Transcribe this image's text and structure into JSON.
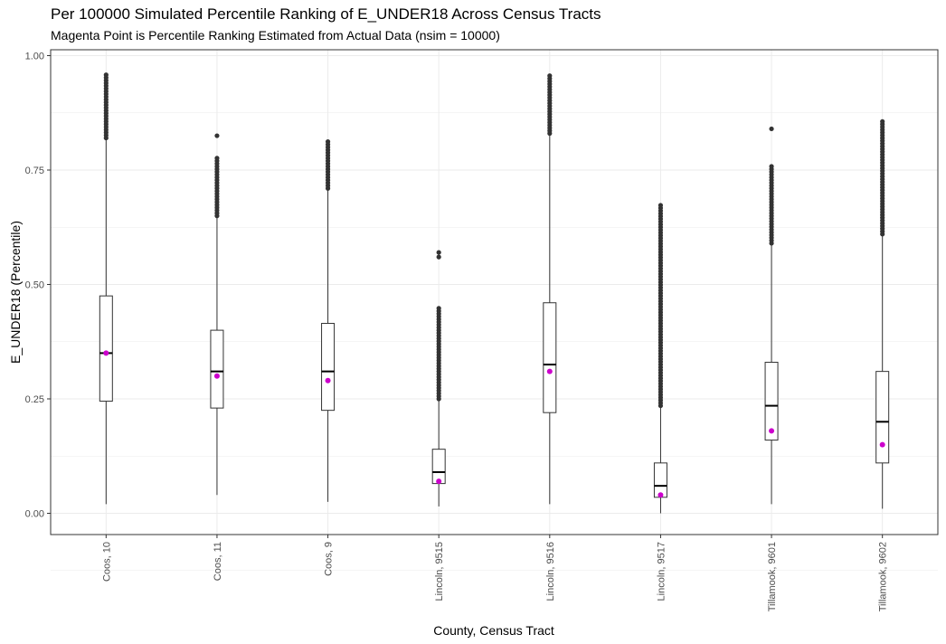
{
  "chart_data": {
    "type": "boxplot",
    "title": "Per 100000 Simulated Percentile Ranking of E_UNDER18 Across Census Tracts",
    "subtitle": "Magenta Point is Percentile Ranking Estimated from Actual Data (nsim = 10000)",
    "xlabel": "County, Census Tract",
    "ylabel": "E_UNDER18 (Percentile)",
    "ylim": [
      -0.05,
      1.0
    ],
    "y_ticks": [
      0.0,
      0.25,
      0.5,
      0.75,
      1.0
    ],
    "y_tick_labels": [
      "0.00",
      "0.25",
      "0.50",
      "0.75",
      "1.00"
    ],
    "grid": true,
    "colors": {
      "box": "#333333",
      "outlier": "#333333",
      "actual_point": "#cc00cc",
      "grid": "#ebebeb"
    },
    "categories": [
      "Coos, 10",
      "Coos, 11",
      "Coos, 9",
      "Lincoln, 9515",
      "Lincoln, 9516",
      "Lincoln, 9517",
      "Tillamook, 9601",
      "Tillamook, 9602"
    ],
    "boxes": [
      {
        "min": 0.02,
        "q1": 0.245,
        "median": 0.35,
        "q3": 0.475,
        "max": 0.82,
        "outlier_range": [
          0.82,
          0.96
        ],
        "actual": 0.35
      },
      {
        "min": 0.04,
        "q1": 0.23,
        "median": 0.31,
        "q3": 0.4,
        "max": 0.65,
        "outlier_range": [
          0.65,
          0.78
        ],
        "outlier_extra": [
          0.825
        ],
        "actual": 0.3
      },
      {
        "min": 0.025,
        "q1": 0.225,
        "median": 0.31,
        "q3": 0.415,
        "max": 0.71,
        "outlier_range": [
          0.71,
          0.815
        ],
        "actual": 0.29
      },
      {
        "min": 0.015,
        "q1": 0.065,
        "median": 0.09,
        "q3": 0.14,
        "max": 0.25,
        "outlier_range": [
          0.25,
          0.45
        ],
        "outlier_extra": [
          0.56,
          0.57
        ],
        "actual": 0.07
      },
      {
        "min": 0.02,
        "q1": 0.22,
        "median": 0.325,
        "q3": 0.46,
        "max": 0.83,
        "outlier_range": [
          0.83,
          0.96
        ],
        "actual": 0.31
      },
      {
        "min": 0.0,
        "q1": 0.035,
        "median": 0.06,
        "q3": 0.11,
        "max": 0.235,
        "outlier_range": [
          0.235,
          0.675
        ],
        "actual": 0.04
      },
      {
        "min": 0.02,
        "q1": 0.16,
        "median": 0.235,
        "q3": 0.33,
        "max": 0.59,
        "outlier_range": [
          0.59,
          0.76
        ],
        "outlier_extra": [
          0.84
        ],
        "actual": 0.18
      },
      {
        "min": 0.01,
        "q1": 0.11,
        "median": 0.2,
        "q3": 0.31,
        "max": 0.61,
        "outlier_range": [
          0.61,
          0.86
        ],
        "actual": 0.15
      }
    ]
  }
}
